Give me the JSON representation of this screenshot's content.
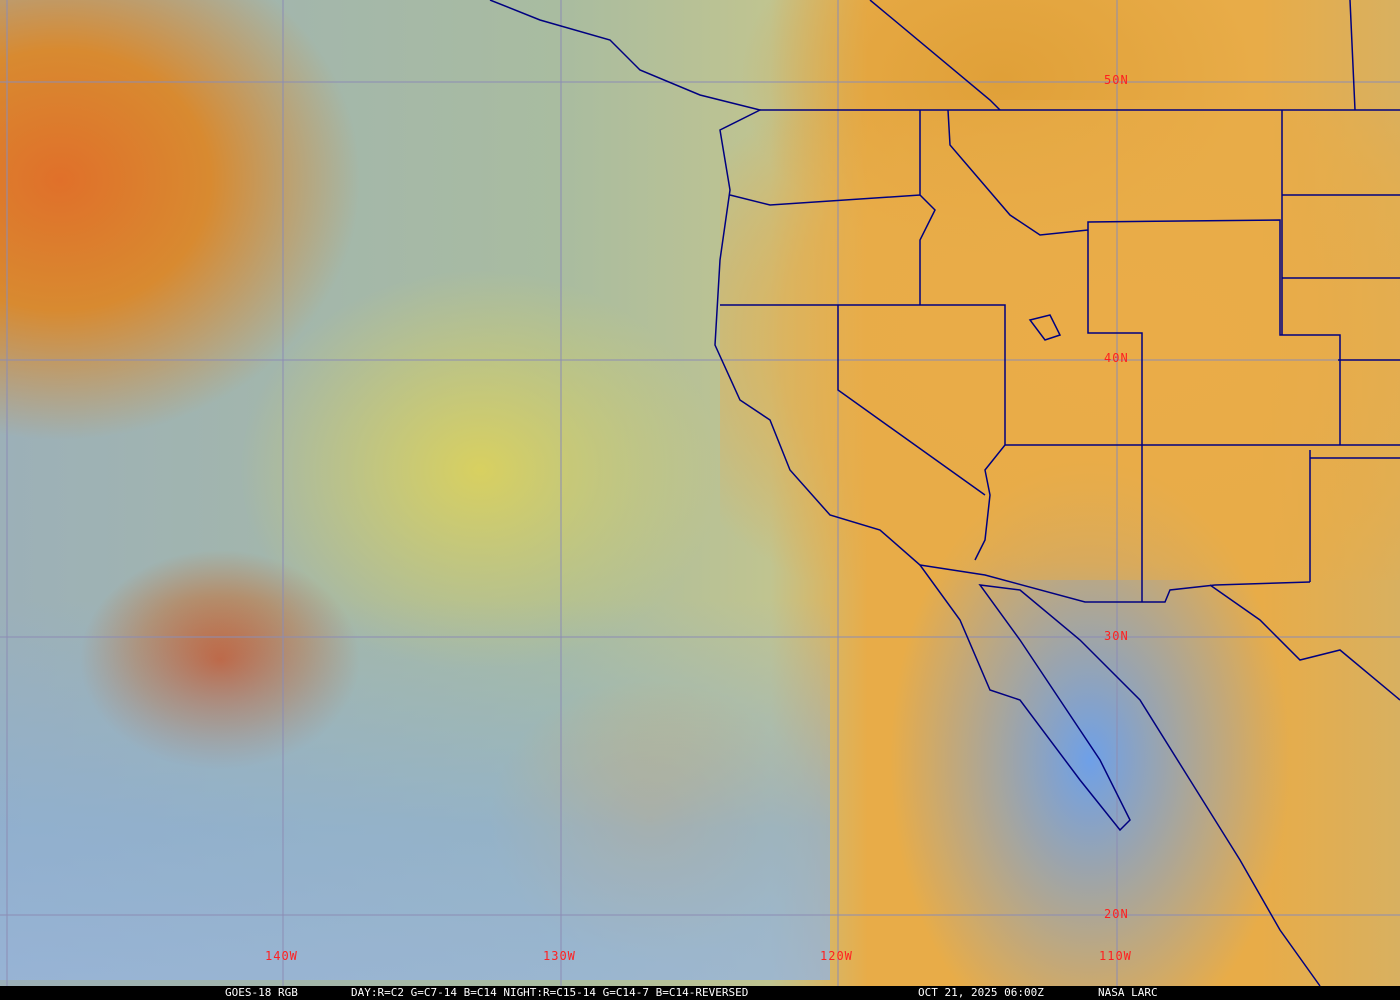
{
  "map": {
    "latitude_labels": [
      "50N",
      "40N",
      "30N",
      "20N"
    ],
    "longitude_labels": [
      "140W",
      "130W",
      "120W",
      "110W"
    ],
    "colors": {
      "gridline": "#8c8cb4",
      "boundary": "#000080",
      "label": "#ff2020",
      "caption_bg": "#000000",
      "caption_text": "#ffffff"
    }
  },
  "caption": {
    "product": "GOES-18 RGB",
    "recipe": "DAY:R=C2 G=C7-14 B=C14 NIGHT:R=C15-14 G=C14-7 B=C14-REVERSED",
    "timestamp": "OCT 21, 2025 06:00Z",
    "credit": "NASA LARC"
  }
}
